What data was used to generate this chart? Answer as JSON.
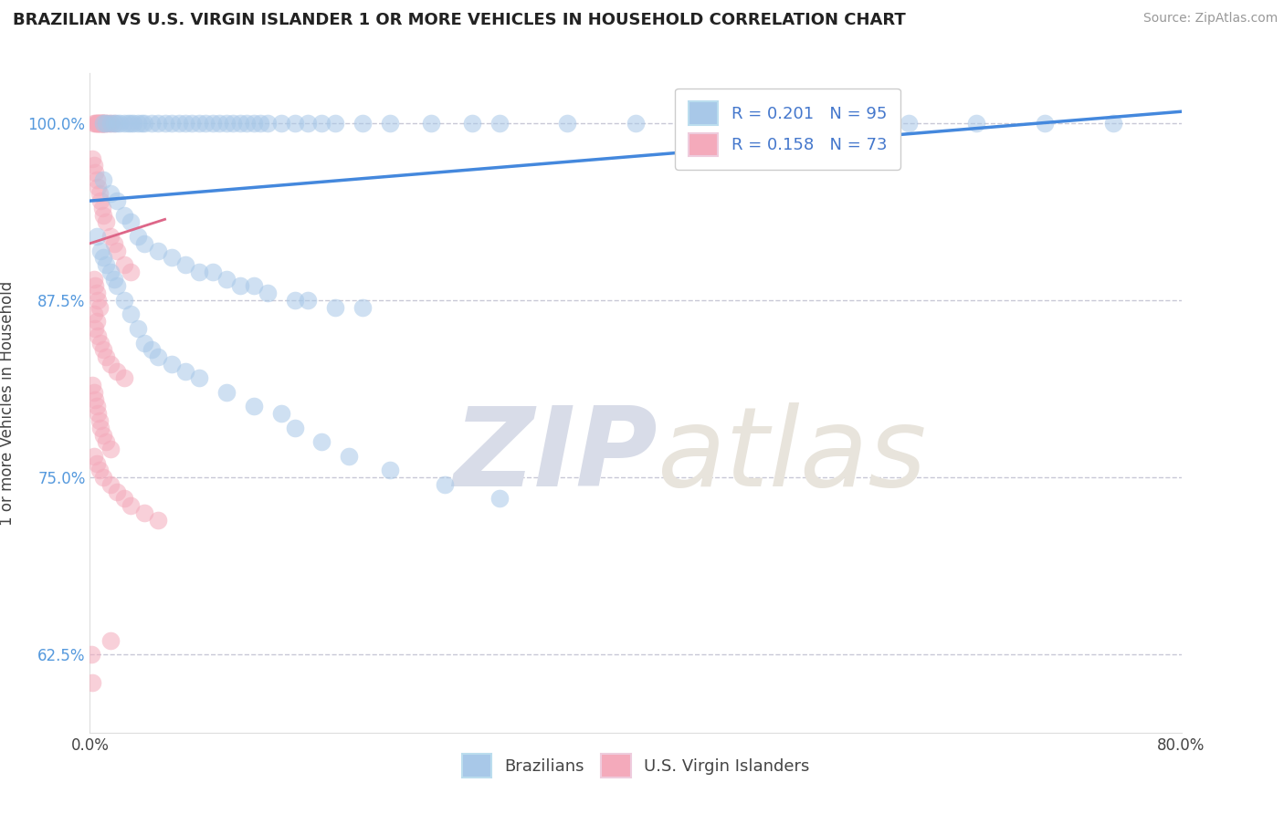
{
  "title": "BRAZILIAN VS U.S. VIRGIN ISLANDER 1 OR MORE VEHICLES IN HOUSEHOLD CORRELATION CHART",
  "source": "Source: ZipAtlas.com",
  "ylabel_label": "1 or more Vehicles in Household",
  "x_min": 0.0,
  "x_max": 80.0,
  "y_min": 57.0,
  "y_max": 103.5,
  "yticks": [
    62.5,
    75.0,
    87.5,
    100.0
  ],
  "ytick_labels": [
    "62.5%",
    "75.0%",
    "87.5%",
    "100.0%"
  ],
  "xticks": [
    0.0,
    80.0
  ],
  "xtick_labels": [
    "0.0%",
    "80.0%"
  ],
  "legend_R_blue": "R = 0.201",
  "legend_N_blue": "N = 95",
  "legend_R_pink": "R = 0.158",
  "legend_N_pink": "N = 73",
  "blue_color": "#A8C8E8",
  "pink_color": "#F4AABB",
  "trend_blue_color": "#4488DD",
  "trend_pink_color": "#DD6688",
  "blue_scatter_x": [
    1.0,
    1.2,
    1.5,
    1.8,
    2.0,
    2.2,
    2.5,
    2.8,
    3.0,
    3.2,
    3.5,
    3.8,
    4.0,
    4.5,
    5.0,
    5.5,
    6.0,
    6.5,
    7.0,
    7.5,
    8.0,
    8.5,
    9.0,
    9.5,
    10.0,
    10.5,
    11.0,
    11.5,
    12.0,
    12.5,
    13.0,
    14.0,
    15.0,
    16.0,
    17.0,
    18.0,
    20.0,
    22.0,
    25.0,
    28.0,
    30.0,
    35.0,
    40.0,
    45.0,
    50.0,
    55.0,
    60.0,
    65.0,
    70.0,
    75.0,
    1.0,
    1.5,
    2.0,
    2.5,
    3.0,
    3.5,
    4.0,
    5.0,
    6.0,
    7.0,
    8.0,
    9.0,
    10.0,
    11.0,
    12.0,
    13.0,
    15.0,
    16.0,
    18.0,
    20.0,
    0.5,
    0.8,
    1.0,
    1.2,
    1.5,
    1.8,
    2.0,
    2.5,
    3.0,
    3.5,
    4.0,
    4.5,
    5.0,
    6.0,
    7.0,
    8.0,
    10.0,
    12.0,
    14.0,
    15.0,
    17.0,
    19.0,
    22.0,
    26.0,
    30.0
  ],
  "blue_scatter_y": [
    100.0,
    100.0,
    100.0,
    100.0,
    100.0,
    100.0,
    100.0,
    100.0,
    100.0,
    100.0,
    100.0,
    100.0,
    100.0,
    100.0,
    100.0,
    100.0,
    100.0,
    100.0,
    100.0,
    100.0,
    100.0,
    100.0,
    100.0,
    100.0,
    100.0,
    100.0,
    100.0,
    100.0,
    100.0,
    100.0,
    100.0,
    100.0,
    100.0,
    100.0,
    100.0,
    100.0,
    100.0,
    100.0,
    100.0,
    100.0,
    100.0,
    100.0,
    100.0,
    100.0,
    100.0,
    100.0,
    100.0,
    100.0,
    100.0,
    100.0,
    96.0,
    95.0,
    94.5,
    93.5,
    93.0,
    92.0,
    91.5,
    91.0,
    90.5,
    90.0,
    89.5,
    89.5,
    89.0,
    88.5,
    88.5,
    88.0,
    87.5,
    87.5,
    87.0,
    87.0,
    92.0,
    91.0,
    90.5,
    90.0,
    89.5,
    89.0,
    88.5,
    87.5,
    86.5,
    85.5,
    84.5,
    84.0,
    83.5,
    83.0,
    82.5,
    82.0,
    81.0,
    80.0,
    79.5,
    78.5,
    77.5,
    76.5,
    75.5,
    74.5,
    73.5
  ],
  "pink_scatter_x": [
    0.3,
    0.5,
    0.5,
    0.7,
    0.7,
    0.8,
    0.9,
    1.0,
    1.0,
    1.0,
    0.4,
    0.6,
    0.6,
    0.8,
    0.9,
    1.1,
    1.2,
    1.3,
    1.5,
    1.8,
    0.2,
    0.3,
    0.4,
    0.5,
    0.6,
    0.7,
    0.8,
    0.9,
    1.0,
    1.2,
    1.5,
    1.8,
    2.0,
    2.5,
    3.0,
    0.3,
    0.4,
    0.5,
    0.6,
    0.7,
    0.3,
    0.5,
    0.4,
    0.6,
    0.8,
    1.0,
    1.2,
    1.5,
    2.0,
    2.5,
    0.2,
    0.3,
    0.4,
    0.5,
    0.6,
    0.7,
    0.8,
    1.0,
    1.2,
    1.5,
    0.3,
    0.5,
    0.7,
    1.0,
    1.5,
    2.0,
    2.5,
    3.0,
    4.0,
    5.0,
    0.1,
    1.5,
    0.2
  ],
  "pink_scatter_y": [
    100.0,
    100.0,
    100.0,
    100.0,
    100.0,
    100.0,
    100.0,
    100.0,
    100.0,
    100.0,
    100.0,
    100.0,
    100.0,
    100.0,
    100.0,
    100.0,
    100.0,
    100.0,
    100.0,
    100.0,
    97.5,
    97.0,
    96.5,
    96.0,
    95.5,
    95.0,
    94.5,
    94.0,
    93.5,
    93.0,
    92.0,
    91.5,
    91.0,
    90.0,
    89.5,
    89.0,
    88.5,
    88.0,
    87.5,
    87.0,
    86.5,
    86.0,
    85.5,
    85.0,
    84.5,
    84.0,
    83.5,
    83.0,
    82.5,
    82.0,
    81.5,
    81.0,
    80.5,
    80.0,
    79.5,
    79.0,
    78.5,
    78.0,
    77.5,
    77.0,
    76.5,
    76.0,
    75.5,
    75.0,
    74.5,
    74.0,
    73.5,
    73.0,
    72.5,
    72.0,
    62.5,
    63.5,
    60.5
  ],
  "blue_trend_x": [
    0.0,
    80.0
  ],
  "blue_trend_y": [
    94.5,
    100.8
  ],
  "pink_trend_x": [
    0.0,
    5.5
  ],
  "pink_trend_y": [
    91.5,
    93.2
  ],
  "watermark_zip": "ZIP",
  "watermark_atlas": "atlas",
  "background_color": "#FFFFFF"
}
